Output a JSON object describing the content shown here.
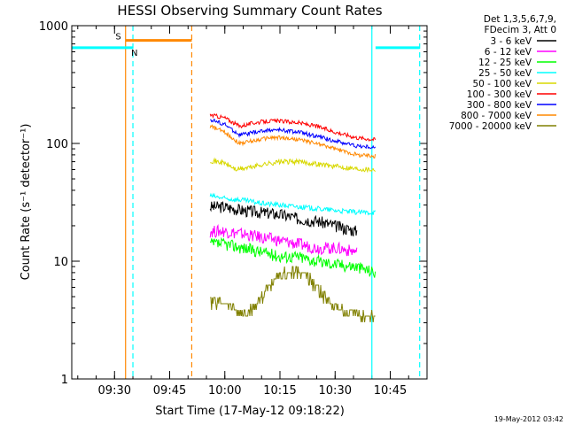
{
  "chart_data": {
    "type": "line",
    "title": "HESSI Observing Summary Count Rates",
    "xlabel": "Start Time (17-May-12 09:18:22)",
    "ylabel": "Count Rate (s⁻¹ detector⁻¹)",
    "yscale": "log",
    "ylim": [
      1,
      1000
    ],
    "xlim": [
      "09:18:22",
      "10:55:00"
    ],
    "y_ticks": [
      "1",
      "10",
      "100",
      "1000"
    ],
    "x_ticks": [
      "09:30",
      "09:45",
      "10:00",
      "10:15",
      "10:30",
      "10:45"
    ],
    "legend_header": [
      "Det 1,3,5,6,7,9,",
      "FDecim 3, Att 0"
    ],
    "legend_position": "right",
    "footer": "19-May-2012 03:42",
    "series": [
      {
        "name": "3 - 6 keV",
        "color": "#000000",
        "x": [
          "09:56",
          "10:00",
          "10:05",
          "10:10",
          "10:15",
          "10:20",
          "10:25",
          "10:30",
          "10:36"
        ],
        "y": [
          29,
          29,
          27,
          26,
          25,
          23,
          22,
          20,
          18
        ]
      },
      {
        "name": "6 - 12 keV",
        "color": "#ff00ff",
        "x": [
          "09:56",
          "10:00",
          "10:05",
          "10:10",
          "10:15",
          "10:20",
          "10:25",
          "10:30",
          "10:36"
        ],
        "y": [
          18,
          18,
          17,
          16,
          15,
          14,
          13,
          13,
          12
        ]
      },
      {
        "name": "12 - 25 keV",
        "color": "#00ff00",
        "x": [
          "09:56",
          "10:00",
          "10:05",
          "10:10",
          "10:15",
          "10:20",
          "10:25",
          "10:30",
          "10:36",
          "10:41"
        ],
        "y": [
          14,
          14,
          13,
          12,
          11,
          11,
          10,
          9.5,
          9,
          8
        ]
      },
      {
        "name": "25 - 50 keV",
        "color": "#00ffff",
        "x": [
          "09:56",
          "10:00",
          "10:05",
          "10:10",
          "10:15",
          "10:20",
          "10:25",
          "10:30",
          "10:36",
          "10:41"
        ],
        "y": [
          36,
          34,
          33,
          31,
          30,
          29,
          28,
          27,
          26,
          26
        ]
      },
      {
        "name": "50 - 100 keV",
        "color": "#d8d800",
        "x": [
          "09:56",
          "10:00",
          "10:03",
          "10:06",
          "10:10",
          "10:15",
          "10:20",
          "10:25",
          "10:30",
          "10:36",
          "10:41"
        ],
        "y": [
          72,
          68,
          60,
          62,
          66,
          70,
          70,
          67,
          64,
          61,
          60
        ]
      },
      {
        "name": "100 - 300 keV",
        "color": "#ff0000",
        "x": [
          "09:56",
          "10:00",
          "10:04",
          "10:08",
          "10:12",
          "10:15",
          "10:20",
          "10:25",
          "10:30",
          "10:36",
          "10:41"
        ],
        "y": [
          175,
          165,
          140,
          150,
          155,
          155,
          150,
          140,
          125,
          112,
          108
        ]
      },
      {
        "name": "300 - 800 keV",
        "color": "#0000ff",
        "x": [
          "09:56",
          "10:00",
          "10:04",
          "10:08",
          "10:12",
          "10:15",
          "10:20",
          "10:25",
          "10:30",
          "10:36",
          "10:41"
        ],
        "y": [
          160,
          145,
          118,
          124,
          130,
          130,
          125,
          115,
          105,
          95,
          92
        ]
      },
      {
        "name": "800 - 7000 keV",
        "color": "#ff8800",
        "x": [
          "09:56",
          "10:00",
          "10:04",
          "10:08",
          "10:12",
          "10:15",
          "10:20",
          "10:25",
          "10:30",
          "10:36",
          "10:41"
        ],
        "y": [
          140,
          125,
          100,
          106,
          112,
          112,
          108,
          100,
          90,
          80,
          78
        ]
      },
      {
        "name": "7000 - 20000 keV",
        "color": "#808000",
        "x": [
          "09:56",
          "10:00",
          "10:05",
          "10:08",
          "10:10",
          "10:14",
          "10:17",
          "10:20",
          "10:23",
          "10:27",
          "10:31",
          "10:35",
          "10:38",
          "10:41"
        ],
        "y": [
          4.5,
          4.5,
          3.5,
          4,
          5,
          7,
          8,
          8,
          7,
          5,
          4,
          3.5,
          3.5,
          3.5
        ]
      }
    ],
    "annotations": [
      {
        "label": "S",
        "color": "#ff8800",
        "x_start": "09:33",
        "x_end": "09:51",
        "y": 750
      },
      {
        "label": "N",
        "color": "#00ffff",
        "x_start": "09:18:22",
        "x_end": "09:35",
        "y": 650
      },
      {
        "label": "",
        "color": "#00ffff",
        "x_start": "10:41",
        "x_end": "10:53",
        "y": 650
      }
    ],
    "vertical_markers": [
      {
        "x": "09:33",
        "color": "#ff8800",
        "style": "solid"
      },
      {
        "x": "09:35",
        "color": "#00ffff",
        "style": "dashed"
      },
      {
        "x": "09:51",
        "color": "#ff8800",
        "style": "dashed"
      },
      {
        "x": "10:40",
        "color": "#00ffff",
        "style": "solid"
      },
      {
        "x": "10:53",
        "color": "#00ffff",
        "style": "dashed"
      }
    ]
  }
}
